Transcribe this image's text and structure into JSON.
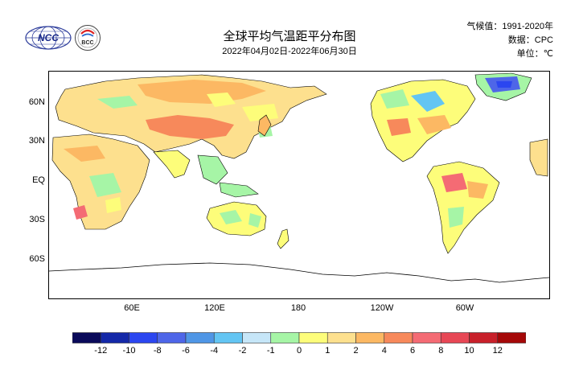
{
  "header": {
    "title": "全球平均气温距平分布图",
    "subtitle": "2022年04月02日-2022年06月30日",
    "climatology": "气候值：1991-2020年",
    "source": "数据：CPC",
    "unit": "单位：℃"
  },
  "logos": {
    "ncc": "NCC",
    "bcc": "BCC"
  },
  "map": {
    "lat_labels": [
      "60N",
      "30N",
      "EQ",
      "30S",
      "60S"
    ],
    "lon_labels": [
      "60E",
      "120E",
      "180",
      "120W",
      "60W"
    ]
  },
  "legend": {
    "colors": [
      "#0a0a5a",
      "#1428a8",
      "#2b46f0",
      "#4e66e8",
      "#4f96e6",
      "#63c5f3",
      "#c6e6f8",
      "#a6f5a6",
      "#fdfd7a",
      "#fde08e",
      "#fcb863",
      "#f7895b",
      "#f46b74",
      "#e74755",
      "#c8202a",
      "#a50808"
    ],
    "tick_labels": [
      "-12",
      "-10",
      "-8",
      "-6",
      "-4",
      "-2",
      "-1",
      "0",
      "1",
      "2",
      "4",
      "6",
      "8",
      "10",
      "12"
    ]
  }
}
